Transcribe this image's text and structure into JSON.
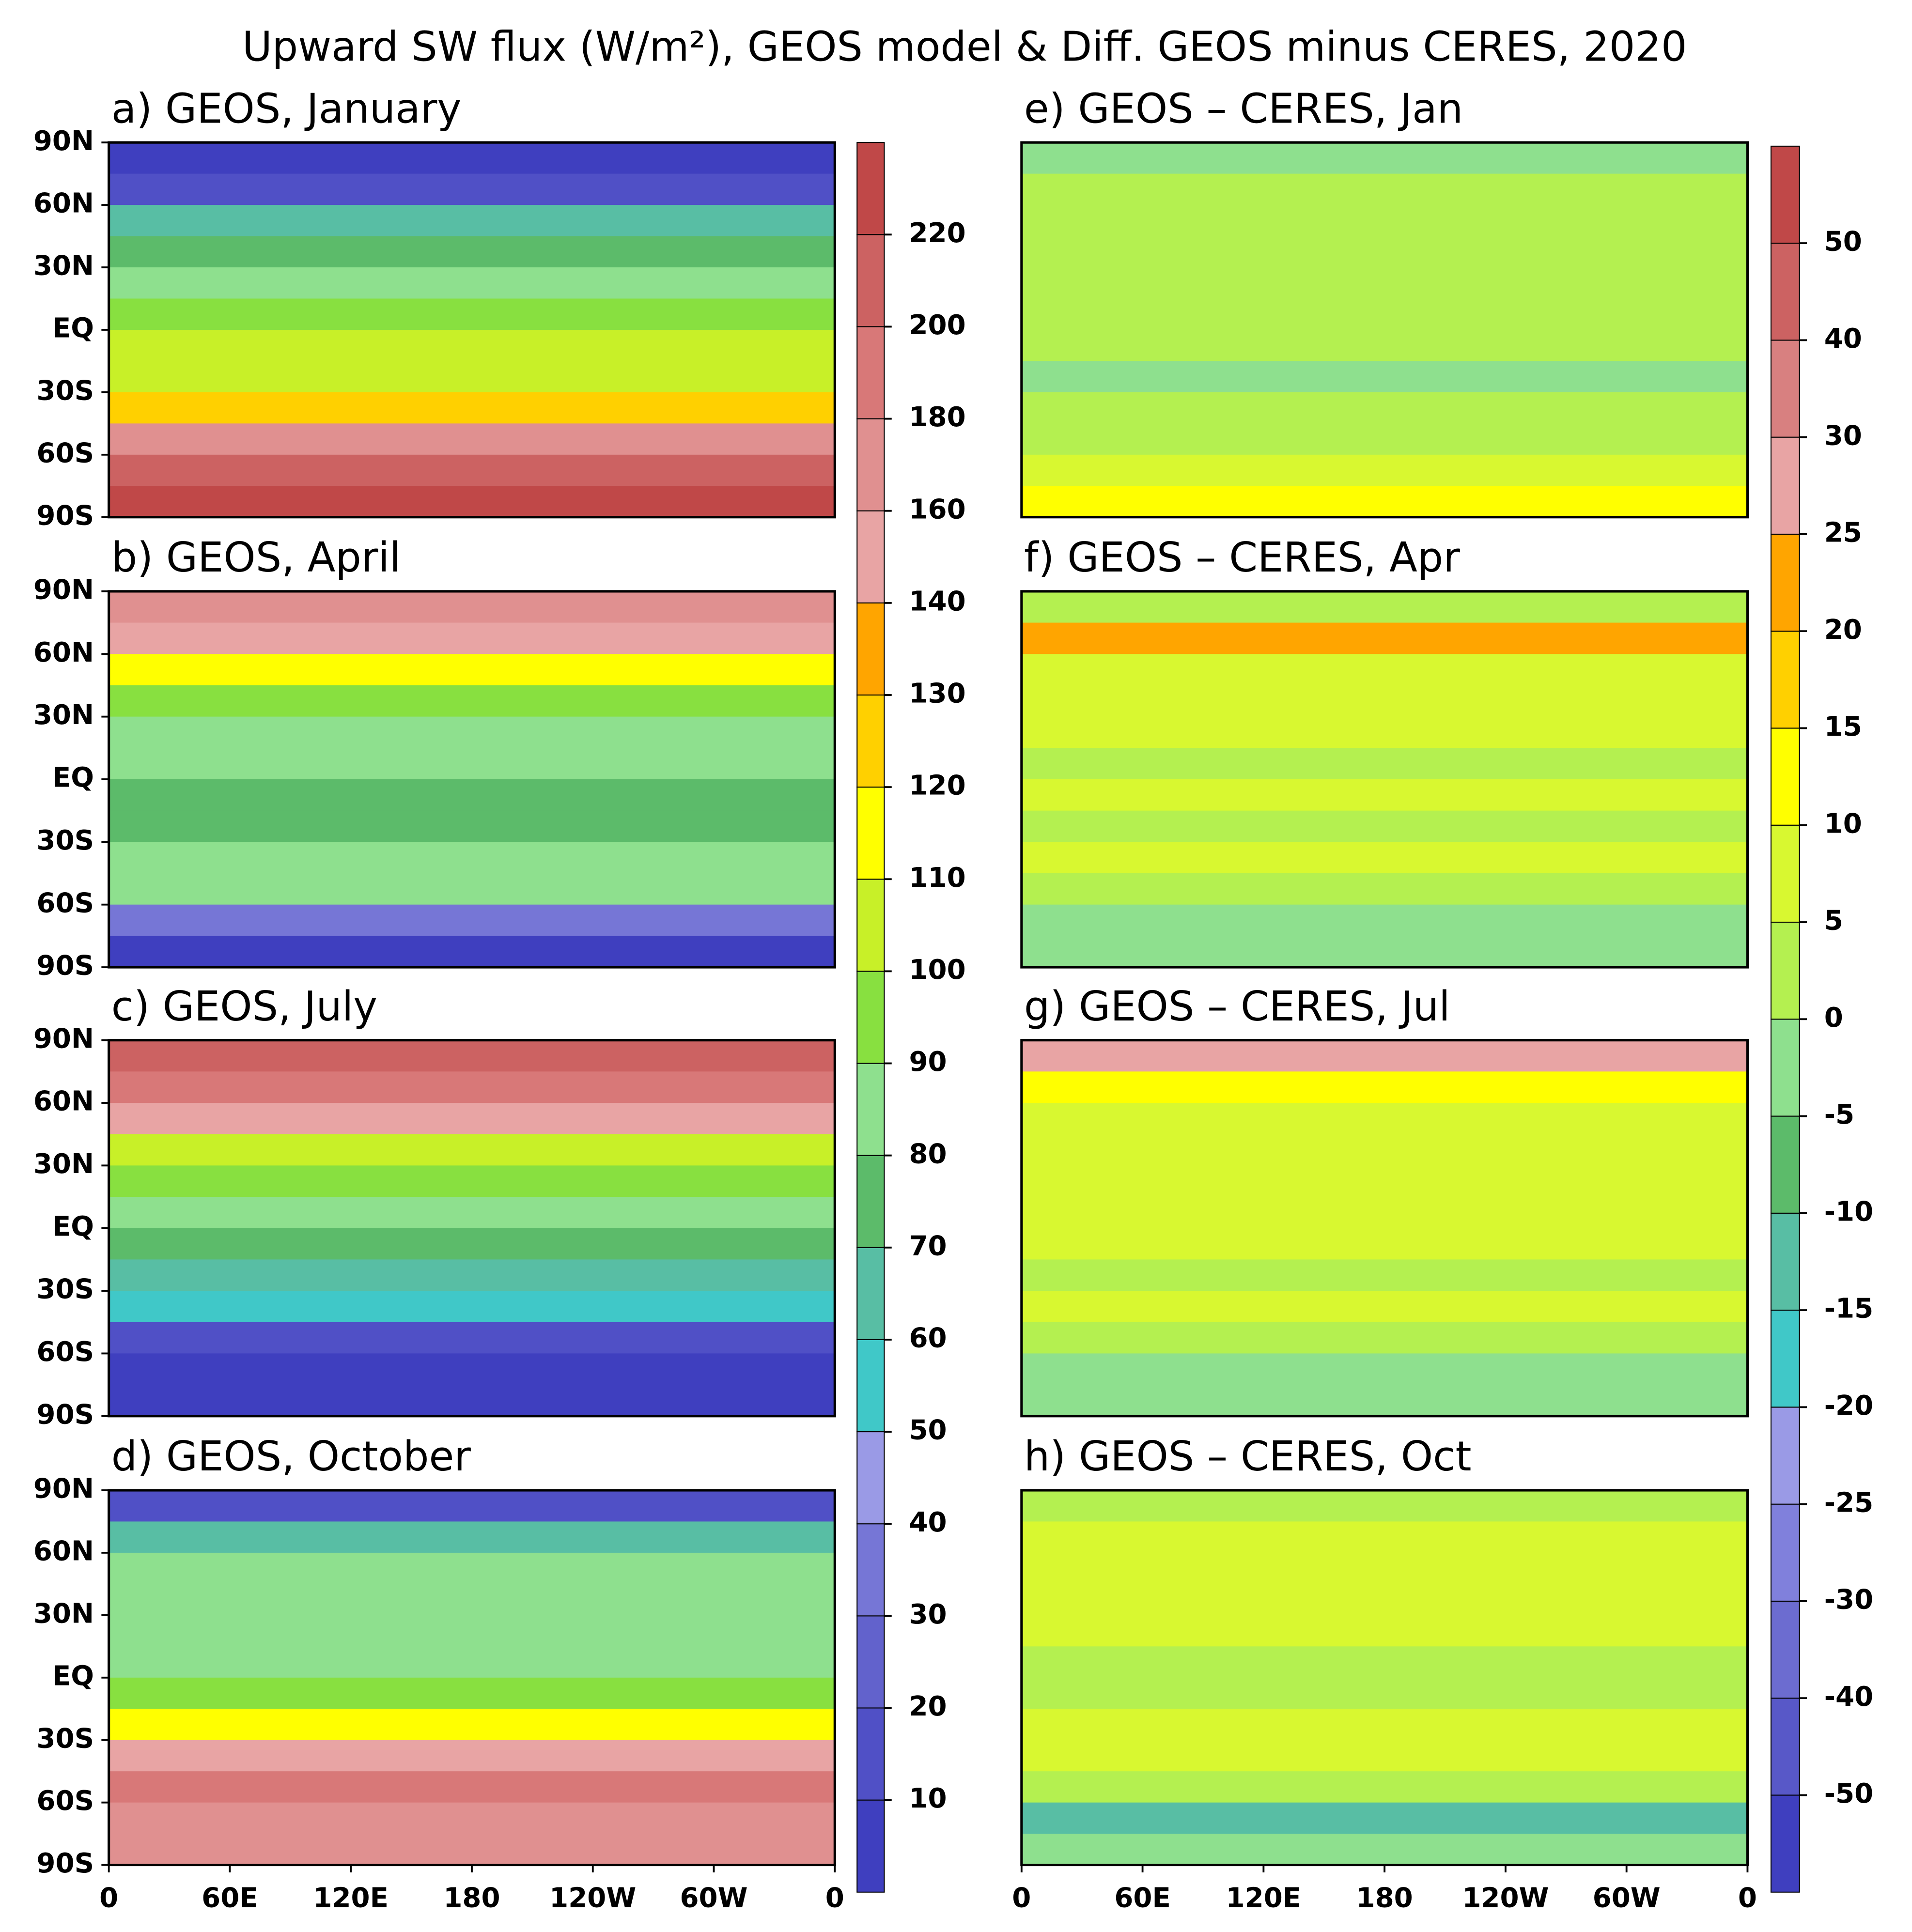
{
  "title": "Upward SW flux (W/m²), GEOS model & Diff. GEOS minus CERES, 2020",
  "colorbars": [
    {
      "levels": [
        10,
        20,
        30,
        40,
        50,
        60,
        70,
        80,
        90,
        100,
        110,
        120,
        130,
        140,
        160,
        180,
        200,
        220
      ],
      "colors": [
        "#3f3fbf",
        "#5050c6",
        "#6262cc",
        "#7676d6",
        "#9a9ae6",
        "#40c8c8",
        "#58bea4",
        "#5cbb6a",
        "#8ee08e",
        "#88e040",
        "#c8f028",
        "#ffff00",
        "#ffd000",
        "#ffa500",
        "#e8a4a4",
        "#e09090",
        "#d87878",
        "#cc6262",
        "#c04848"
      ]
    },
    {
      "levels": [
        -50,
        -40,
        -30,
        -25,
        -20,
        -15,
        -10,
        -5,
        0,
        5,
        10,
        15,
        20,
        25,
        30,
        40,
        50
      ],
      "colors": [
        "#3f3fbf",
        "#5858c8",
        "#6c6cd0",
        "#8080dc",
        "#9a9ae6",
        "#40c8c8",
        "#58bea4",
        "#5cbb6a",
        "#8ee08e",
        "#b4f050",
        "#d8f830",
        "#ffff00",
        "#ffd000",
        "#ffa500",
        "#e8a4a4",
        "#d88080",
        "#cc6262",
        "#c04848"
      ]
    }
  ],
  "chart_data": [
    {
      "type": "map",
      "title": "a) GEOS, January",
      "colorbar": 0,
      "xlim": [
        0,
        360
      ],
      "ylim": [
        -90,
        90
      ],
      "yticks": [
        {
          "value": 90,
          "label": "90N"
        },
        {
          "value": 60,
          "label": "60N"
        },
        {
          "value": 30,
          "label": "30N"
        },
        {
          "value": 0,
          "label": "EQ"
        },
        {
          "value": -30,
          "label": "30S"
        },
        {
          "value": -60,
          "label": "60S"
        },
        {
          "value": -90,
          "label": "90S"
        }
      ],
      "y": [
        82.5,
        67.5,
        52.5,
        37.5,
        22.5,
        7.5,
        -7.5,
        -22.5,
        -37.5,
        -52.5,
        -67.5,
        -82.5
      ],
      "values": [
        5,
        15,
        60,
        75,
        85,
        95,
        105,
        100,
        120,
        170,
        200,
        225
      ]
    },
    {
      "type": "map",
      "title": "b) GEOS, April",
      "colorbar": 0,
      "xlim": [
        0,
        360
      ],
      "ylim": [
        -90,
        90
      ],
      "yticks": [
        {
          "value": 90,
          "label": "90N"
        },
        {
          "value": 60,
          "label": "60N"
        },
        {
          "value": 30,
          "label": "30N"
        },
        {
          "value": 0,
          "label": "EQ"
        },
        {
          "value": -30,
          "label": "30S"
        },
        {
          "value": -60,
          "label": "60S"
        },
        {
          "value": -90,
          "label": "90S"
        }
      ],
      "y": [
        82.5,
        67.5,
        52.5,
        37.5,
        22.5,
        7.5,
        -7.5,
        -22.5,
        -37.5,
        -52.5,
        -67.5,
        -82.5
      ],
      "values": [
        170,
        150,
        110,
        90,
        80,
        85,
        75,
        70,
        80,
        80,
        30,
        5
      ]
    },
    {
      "type": "map",
      "title": "c) GEOS, July",
      "colorbar": 0,
      "xlim": [
        0,
        360
      ],
      "ylim": [
        -90,
        90
      ],
      "yticks": [
        {
          "value": 90,
          "label": "90N"
        },
        {
          "value": 60,
          "label": "60N"
        },
        {
          "value": 30,
          "label": "30N"
        },
        {
          "value": 0,
          "label": "EQ"
        },
        {
          "value": -30,
          "label": "30S"
        },
        {
          "value": -60,
          "label": "60S"
        },
        {
          "value": -90,
          "label": "90S"
        }
      ],
      "y": [
        82.5,
        67.5,
        52.5,
        37.5,
        22.5,
        7.5,
        -7.5,
        -22.5,
        -37.5,
        -52.5,
        -67.5,
        -82.5
      ],
      "values": [
        210,
        190,
        150,
        100,
        90,
        85,
        70,
        60,
        50,
        15,
        5,
        5
      ]
    },
    {
      "type": "map",
      "title": "d) GEOS, October",
      "colorbar": 0,
      "xlim": [
        0,
        360
      ],
      "ylim": [
        -90,
        90
      ],
      "yticks": [
        {
          "value": 90,
          "label": "90N"
        },
        {
          "value": 60,
          "label": "60N"
        },
        {
          "value": 30,
          "label": "30N"
        },
        {
          "value": 0,
          "label": "EQ"
        },
        {
          "value": -30,
          "label": "30S"
        },
        {
          "value": -60,
          "label": "60S"
        },
        {
          "value": -90,
          "label": "90S"
        }
      ],
      "xticks": [
        0,
        {
          "value": 60,
          "label": "60E"
        },
        {
          "value": 120,
          "label": "120E"
        },
        180,
        {
          "value": 240,
          "label": "120W"
        },
        {
          "value": 300,
          "label": "60W"
        },
        {
          "value": 360,
          "label": "0"
        }
      ],
      "y": [
        82.5,
        67.5,
        52.5,
        37.5,
        22.5,
        7.5,
        -7.5,
        -22.5,
        -37.5,
        -52.5,
        -67.5,
        -82.5
      ],
      "values": [
        15,
        60,
        80,
        80,
        85,
        85,
        90,
        110,
        140,
        180,
        175,
        160
      ]
    },
    {
      "type": "map",
      "title": "e) GEOS – CERES, Jan",
      "colorbar": 1,
      "xlim": [
        0,
        360
      ],
      "ylim": [
        -90,
        90
      ],
      "y": [
        82.5,
        67.5,
        52.5,
        37.5,
        22.5,
        7.5,
        -7.5,
        -22.5,
        -37.5,
        -52.5,
        -67.5,
        -82.5
      ],
      "values": [
        -5,
        2,
        2,
        3,
        3,
        0,
        2,
        -3,
        0,
        3,
        5,
        12
      ]
    },
    {
      "type": "map",
      "title": "f) GEOS – CERES, Apr",
      "colorbar": 1,
      "xlim": [
        0,
        360
      ],
      "ylim": [
        -90,
        90
      ],
      "y": [
        82.5,
        67.5,
        52.5,
        37.5,
        22.5,
        7.5,
        -7.5,
        -22.5,
        -37.5,
        -52.5,
        -67.5,
        -82.5
      ],
      "values": [
        2,
        20,
        5,
        5,
        5,
        3,
        5,
        3,
        5,
        3,
        -2,
        -3
      ]
    },
    {
      "type": "map",
      "title": "g) GEOS – CERES, Jul",
      "colorbar": 1,
      "xlim": [
        0,
        360
      ],
      "ylim": [
        -90,
        90
      ],
      "y": [
        82.5,
        67.5,
        52.5,
        37.5,
        22.5,
        7.5,
        -7.5,
        -22.5,
        -37.5,
        -52.5,
        -67.5,
        -82.5
      ],
      "values": [
        25,
        10,
        5,
        5,
        5,
        5,
        5,
        3,
        5,
        3,
        -3,
        -3
      ]
    },
    {
      "type": "map",
      "title": "h) GEOS – CERES, Oct",
      "colorbar": 1,
      "xlim": [
        0,
        360
      ],
      "ylim": [
        -90,
        90
      ],
      "xticks": [
        0,
        {
          "value": 60,
          "label": "60E"
        },
        {
          "value": 120,
          "label": "120E"
        },
        180,
        {
          "value": 240,
          "label": "120W"
        },
        {
          "value": 300,
          "label": "60W"
        },
        {
          "value": 360,
          "label": "0"
        }
      ],
      "y": [
        82.5,
        67.5,
        52.5,
        37.5,
        22.5,
        7.5,
        -7.5,
        -22.5,
        -37.5,
        -52.5,
        -67.5,
        -82.5
      ],
      "values": [
        2,
        5,
        5,
        5,
        5,
        2,
        3,
        5,
        5,
        3,
        -15,
        -5
      ]
    }
  ]
}
